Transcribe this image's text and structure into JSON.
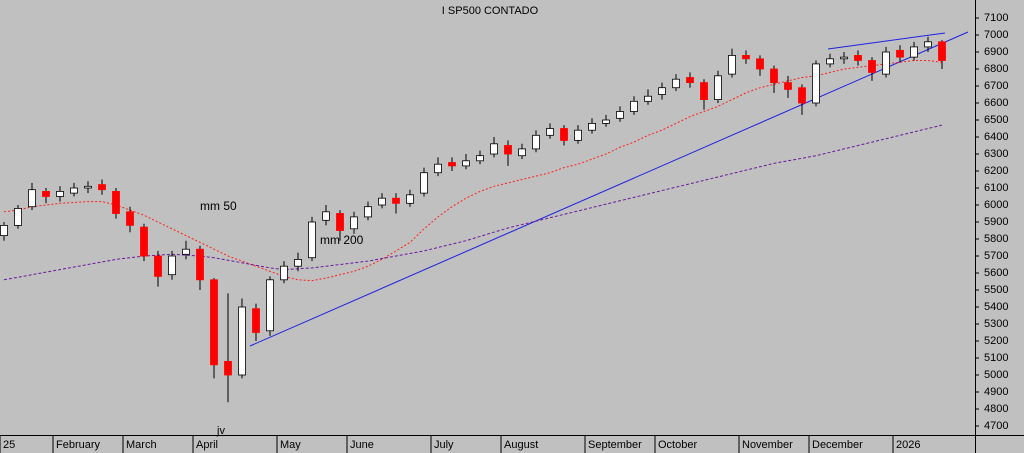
{
  "chart_data": {
    "type": "candlestick",
    "title": "I SP500 CONTADO",
    "categories": [
      "25",
      null,
      null,
      null,
      "February",
      null,
      null,
      null,
      null,
      "March",
      null,
      null,
      null,
      null,
      "April",
      null,
      null,
      null,
      null,
      null,
      "May",
      null,
      null,
      null,
      null,
      "June",
      null,
      null,
      null,
      null,
      null,
      "July",
      null,
      null,
      null,
      null,
      "August",
      null,
      null,
      null,
      null,
      null,
      "September",
      null,
      null,
      null,
      null,
      "October",
      null,
      null,
      null,
      null,
      null,
      "November",
      null,
      null,
      null,
      null,
      "December",
      null,
      null,
      null,
      null,
      null,
      "2026",
      null,
      null,
      null
    ],
    "open": [
      5820,
      5880,
      5990,
      6080,
      6050,
      6070,
      6100,
      6120,
      6080,
      5960,
      5870,
      5700,
      5590,
      5710,
      5740,
      5560,
      5080,
      5000,
      5390,
      5260,
      5560,
      5640,
      5690,
      5910,
      5950,
      5860,
      5930,
      6000,
      6040,
      6010,
      6070,
      6190,
      6250,
      6230,
      6260,
      6300,
      6350,
      6290,
      6330,
      6410,
      6450,
      6380,
      6440,
      6480,
      6510,
      6550,
      6610,
      6650,
      6690,
      6750,
      6720,
      6620,
      6770,
      6880,
      6860,
      6800,
      6720,
      6690,
      6600,
      6830,
      6860,
      6880,
      6850,
      6770,
      6910,
      6870,
      6930,
      6960
    ],
    "high": [
      5900,
      6000,
      6130,
      6100,
      6110,
      6130,
      6140,
      6150,
      6100,
      5990,
      5890,
      5730,
      5730,
      5790,
      5760,
      5570,
      5480,
      5450,
      5420,
      5580,
      5670,
      5720,
      5930,
      6000,
      5970,
      5960,
      6020,
      6070,
      6070,
      6090,
      6220,
      6280,
      6280,
      6300,
      6320,
      6400,
      6380,
      6360,
      6440,
      6480,
      6470,
      6470,
      6510,
      6530,
      6580,
      6640,
      6680,
      6720,
      6770,
      6780,
      6740,
      6790,
      6920,
      6910,
      6880,
      6820,
      6760,
      6710,
      6850,
      6890,
      6900,
      6910,
      6870,
      6930,
      6940,
      6960,
      6990,
      6970
    ],
    "low": [
      5790,
      5860,
      5970,
      6010,
      6020,
      6050,
      6070,
      6060,
      5920,
      5840,
      5670,
      5520,
      5560,
      5680,
      5500,
      4980,
      4840,
      4980,
      5200,
      5230,
      5540,
      5610,
      5670,
      5880,
      5790,
      5830,
      5910,
      5980,
      5950,
      5990,
      6050,
      6170,
      6200,
      6210,
      6240,
      6280,
      6230,
      6270,
      6310,
      6390,
      6350,
      6360,
      6420,
      6460,
      6490,
      6530,
      6590,
      6620,
      6670,
      6690,
      6560,
      6600,
      6750,
      6830,
      6760,
      6660,
      6630,
      6530,
      6580,
      6810,
      6830,
      6820,
      6730,
      6750,
      6840,
      6850,
      6900,
      6800
    ],
    "close": [
      5880,
      5980,
      6090,
      6050,
      6080,
      6100,
      6110,
      6090,
      5950,
      5880,
      5700,
      5580,
      5700,
      5740,
      5560,
      5060,
      5000,
      5400,
      5250,
      5560,
      5640,
      5680,
      5900,
      5960,
      5850,
      5930,
      5990,
      6040,
      6010,
      6060,
      6190,
      6240,
      6230,
      6260,
      6290,
      6360,
      6300,
      6330,
      6410,
      6450,
      6380,
      6440,
      6480,
      6500,
      6550,
      6610,
      6640,
      6690,
      6740,
      6720,
      6620,
      6760,
      6880,
      6860,
      6800,
      6720,
      6680,
      6600,
      6830,
      6860,
      6870,
      6850,
      6780,
      6900,
      6870,
      6930,
      6960,
      6850
    ],
    "up_color": "#ffffff",
    "down_color": "#ff0000",
    "series": [
      {
        "name": "mm 50",
        "color": "#ff2020",
        "values": [
          5960,
          5970,
          5990,
          6000,
          6010,
          6015,
          6020,
          6020,
          6000,
          5970,
          5940,
          5900,
          5860,
          5820,
          5780,
          5740,
          5700,
          5670,
          5640,
          5610,
          5580,
          5560,
          5555,
          5570,
          5590,
          5610,
          5640,
          5680,
          5730,
          5780,
          5860,
          5930,
          5990,
          6040,
          6080,
          6110,
          6130,
          6150,
          6170,
          6190,
          6220,
          6240,
          6270,
          6300,
          6340,
          6370,
          6410,
          6440,
          6480,
          6520,
          6550,
          6580,
          6620,
          6660,
          6690,
          6710,
          6730,
          6750,
          6760,
          6780,
          6800,
          6810,
          6820,
          6830,
          6840,
          6850,
          6850,
          6840
        ]
      },
      {
        "name": "mm 200",
        "color": "#6a1b9a",
        "values": [
          5560,
          5575,
          5590,
          5605,
          5620,
          5635,
          5650,
          5665,
          5680,
          5690,
          5700,
          5705,
          5710,
          5705,
          5700,
          5690,
          5675,
          5660,
          5645,
          5630,
          5620,
          5625,
          5630,
          5640,
          5650,
          5660,
          5670,
          5685,
          5700,
          5715,
          5730,
          5750,
          5770,
          5790,
          5815,
          5840,
          5865,
          5885,
          5905,
          5925,
          5945,
          5965,
          5985,
          6005,
          6025,
          6045,
          6065,
          6085,
          6105,
          6125,
          6145,
          6165,
          6185,
          6205,
          6225,
          6245,
          6260,
          6275,
          6290,
          6310,
          6330,
          6350,
          6370,
          6390,
          6410,
          6430,
          6450,
          6470
        ]
      }
    ],
    "annotation": "jv",
    "ylim": [
      4647,
      7206
    ],
    "yticks": [
      4700,
      4800,
      4900,
      5000,
      5100,
      5200,
      5300,
      5400,
      5500,
      5600,
      5700,
      5800,
      5900,
      6000,
      6100,
      6200,
      6300,
      6400,
      6500,
      6600,
      6700,
      6800,
      6900,
      7000,
      7100
    ]
  }
}
